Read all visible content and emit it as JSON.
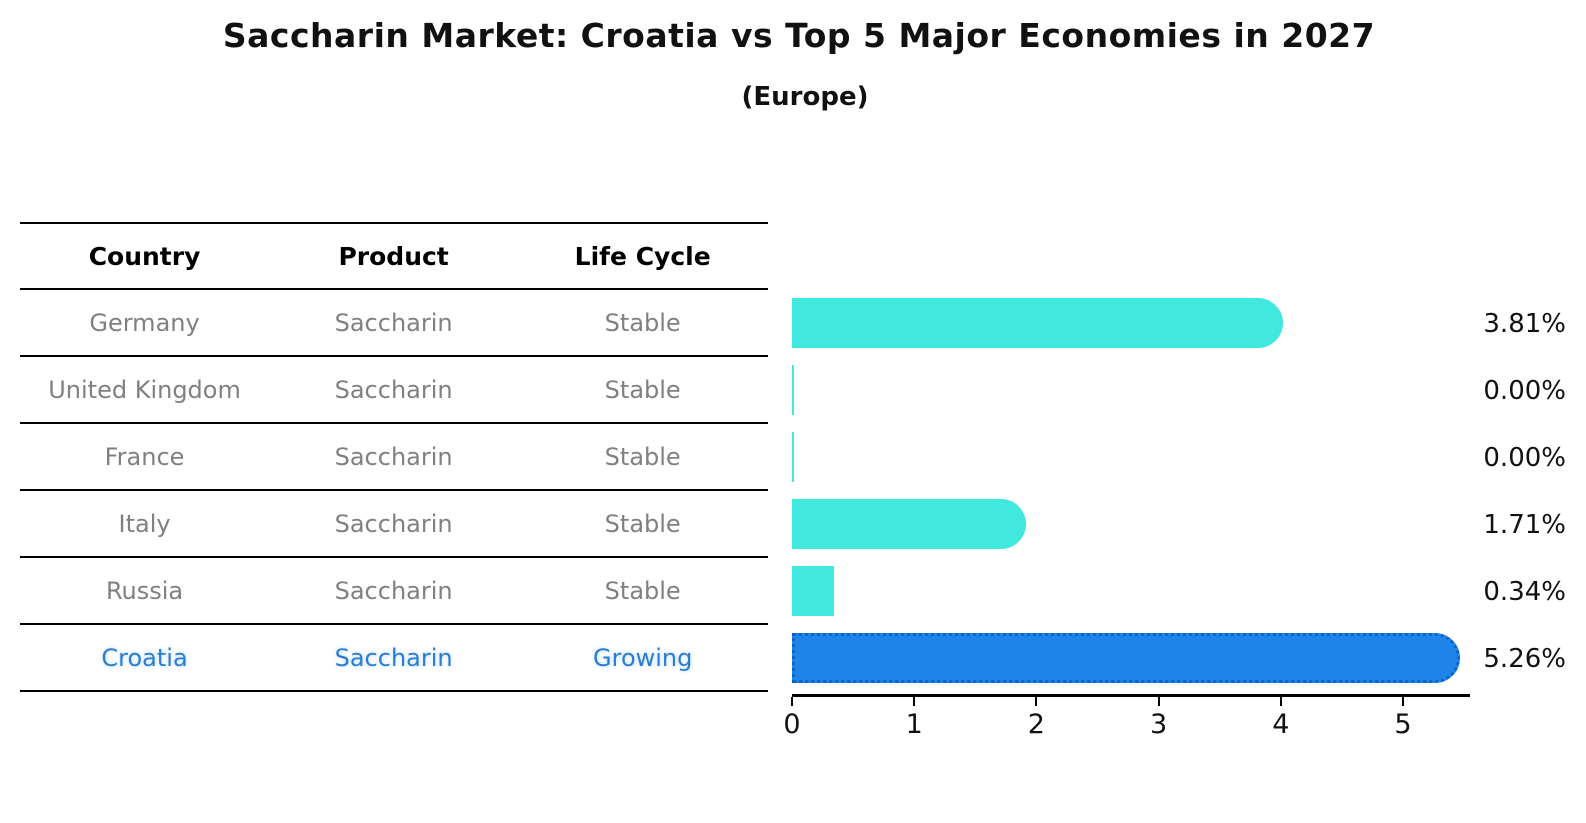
{
  "title": "Saccharin Market: Croatia vs Top 5 Major Economies in 2027",
  "subtitle": "(Europe)",
  "table": {
    "headers": [
      "Country",
      "Product",
      "Life Cycle"
    ],
    "rows": [
      {
        "country": "Germany",
        "product": "Saccharin",
        "life_cycle": "Stable"
      },
      {
        "country": "United Kingdom",
        "product": "Saccharin",
        "life_cycle": "Stable"
      },
      {
        "country": "France",
        "product": "Saccharin",
        "life_cycle": "Stable"
      },
      {
        "country": "Italy",
        "product": "Saccharin",
        "life_cycle": "Stable"
      },
      {
        "country": "Russia",
        "product": "Saccharin",
        "life_cycle": "Stable"
      },
      {
        "country": "Croatia",
        "product": "Saccharin",
        "life_cycle": "Growing"
      }
    ]
  },
  "chart_data": {
    "type": "bar",
    "orientation": "horizontal",
    "title": "Saccharin Market: Croatia vs Top 5 Major Economies in 2027",
    "subtitle": "(Europe)",
    "categories": [
      "Germany",
      "United Kingdom",
      "France",
      "Italy",
      "Russia",
      "Croatia"
    ],
    "values": [
      3.81,
      0.0,
      0.0,
      1.71,
      0.34,
      5.26
    ],
    "value_labels": [
      "3.81%",
      "0.00%",
      "0.00%",
      "1.71%",
      "0.34%",
      "5.26%"
    ],
    "unit": "percent",
    "x_ticks": [
      "0",
      "1",
      "2",
      "3",
      "4",
      "5"
    ],
    "xlim": [
      0,
      5.55
    ],
    "grid": false,
    "legend": false,
    "bar_colors": [
      "#40E8DE",
      "#40E8DE",
      "#40E8DE",
      "#40E8DE",
      "#40E8DE",
      "#1D85EA"
    ],
    "bar_styles": [
      "solid",
      "solid",
      "solid",
      "solid",
      "solid",
      "dotted-edge"
    ],
    "colors": {
      "default_bar": "#40E8DE",
      "highlight_bar": "#1D85EA",
      "highlight_bar_edge": "#0E62C6",
      "row_text": "#808080",
      "highlight_text": "#2D7CD1",
      "label_text": "#111111"
    }
  }
}
